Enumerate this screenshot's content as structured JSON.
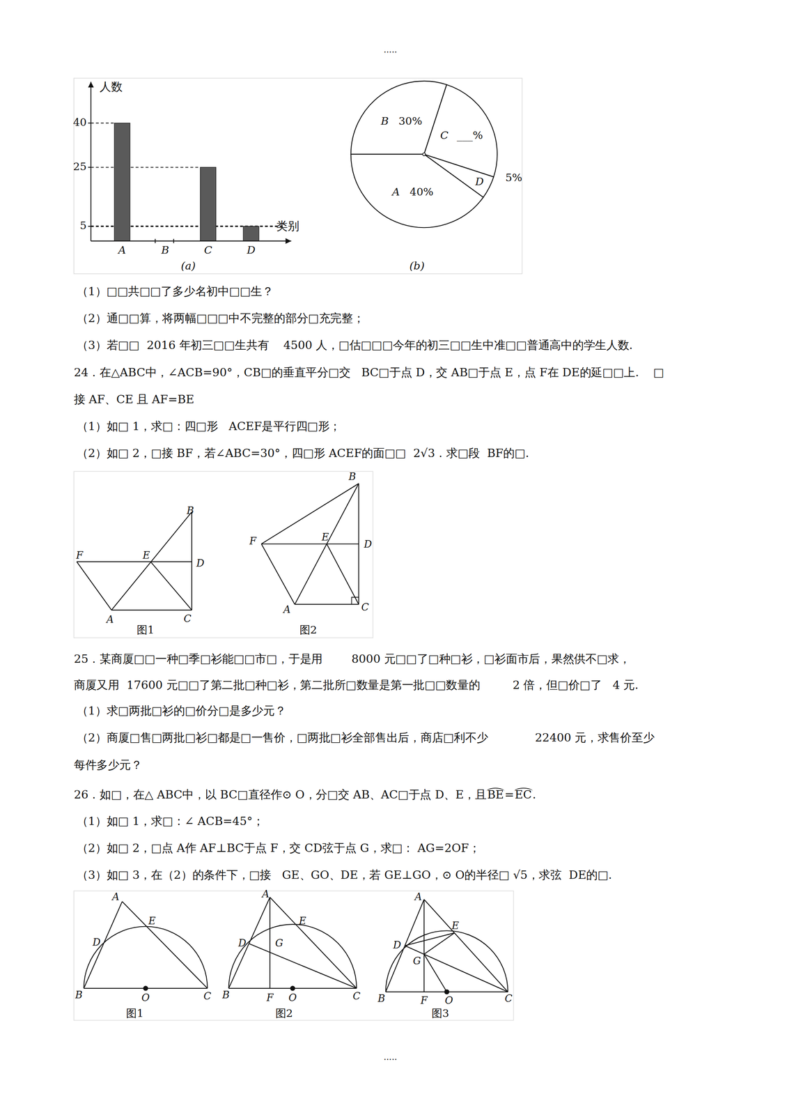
{
  "chart_data": [
    {
      "type": "bar",
      "categories": [
        "A",
        "B",
        "C",
        "D"
      ],
      "values": [
        40,
        null,
        25,
        5
      ],
      "color": "#5a5a5a",
      "ylim": [
        0,
        54
      ],
      "yticks": [
        5,
        25,
        40
      ],
      "x_label": "类别",
      "y_label": "人数",
      "subtitle": "(a)"
    },
    {
      "type": "pie",
      "categories": [
        "B",
        "C",
        "D",
        "A"
      ],
      "values": [
        30,
        25,
        5,
        40
      ],
      "value_labels": [
        "30%",
        "___%",
        "5%",
        "40%"
      ],
      "subtitle": "(b)"
    }
  ],
  "document": {
    "dots_top": ".....",
    "q23_parts": [
      [
        "（1）□□共□□了多少名初中□□生？"
      ],
      [
        "（2）通□□算，将两幅□□□中不完整的部分□充完整；"
      ],
      [
        "（3）若□□  2016 年初三□□生共有    4500 人，□估□□□今年的初三□□生中准□□普通高中的学生人数."
      ]
    ],
    "q24": [
      [
        "24．在△ABC中，∠ACB=90°，CB□的垂直平分□交   BC□于点 D，交 AB□于点 E，点 F在 DE的延□□上.    □"
      ],
      [
        "接 AF、CE 且 AF=BE"
      ],
      [
        "（1）如□ 1，求□：四□形   ACEF是平行四□形；"
      ],
      [
        "（2）如□ 2，□接 BF，若∠ABC=30°，四□形 ACEF的面□□  2√3．求□段  BF的□."
      ]
    ],
    "fig24": [
      {
        "caption": "图1",
        "points": [
          "B",
          "D",
          "C",
          "A",
          "E",
          "F"
        ]
      },
      {
        "caption": "图2",
        "points": [
          "B",
          "D",
          "C",
          "A",
          "E",
          "F"
        ]
      }
    ],
    "q25": [
      [
        "25．某商厦□□一种□季□衫能□□市□，于是用        8000 元□□了□种□衫，□衫面市后，果然供不□求，"
      ],
      [
        "商厦又用  17600 元□□了第二批□种□衫，第二批所□数量是第一批□□数量的         2 倍，但□价□了   4 元."
      ],
      [
        "（1）求□两批□衫的□价分□是多少元？"
      ],
      [
        "（2）商厦□售□两批□衫□都是□一售价，□两批□衫全部售出后，商店□利不少             22400 元，求售价至少"
      ],
      [
        "每件多少元？"
      ]
    ],
    "q26": [
      [
        "26．如□，在△ ABC中，以 BC□直径作⊙ O，分□交 AB、AC□于点 D、E，且",
        {
          "arc": "BE"
        },
        "=",
        {
          "arc": "EC"
        },
        "."
      ],
      [
        "（1）如□ 1，求□：∠ ACB=45°；"
      ],
      [
        "（2）如□ 2，□点 A作 AF⊥BC于点 F，交 CD弦于点 G，求□： AG=2OF；"
      ],
      [
        "（3）如□ 3，在（2）的条件下，□接   GE、GO、DE，若 GE⊥GO，⊙ O的半径□ √5，求弦  DE的□."
      ]
    ],
    "fig26": [
      {
        "caption": "图1",
        "points": [
          "B",
          "O",
          "C",
          "A",
          "D",
          "E"
        ]
      },
      {
        "caption": "图2",
        "points": [
          "B",
          "F",
          "O",
          "C",
          "A",
          "D",
          "E",
          "G"
        ]
      },
      {
        "caption": "图3",
        "points": [
          "B",
          "F",
          "O",
          "C",
          "A",
          "D",
          "E",
          "G"
        ]
      }
    ],
    "dots_bottom": "....."
  }
}
